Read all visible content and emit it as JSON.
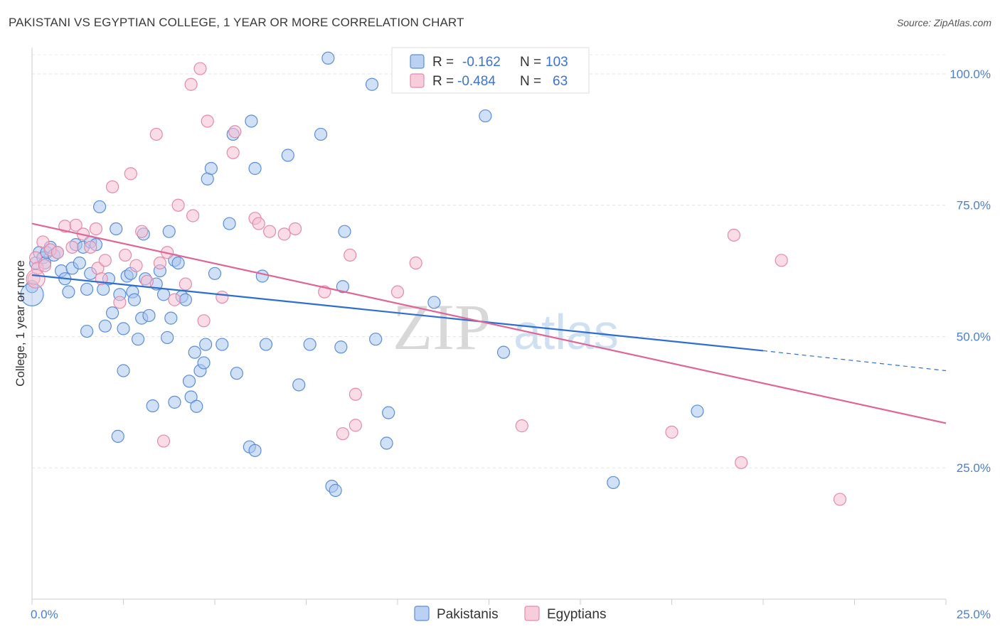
{
  "title": "PAKISTANI VS EGYPTIAN COLLEGE, 1 YEAR OR MORE CORRELATION CHART",
  "source": "Source: ZipAtlas.com",
  "colors": {
    "pakistani_fill": "#a9c6f0",
    "pakistani_stroke": "#5b8ed8",
    "pakistani_line": "#2d6fcf",
    "egyptian_fill": "#f6c0d2",
    "egyptian_stroke": "#e58aa9",
    "egyptian_line": "#e06594",
    "tick_blue": "#4a7fd0"
  },
  "legend": {
    "rows": [
      {
        "r_label": "R = ",
        "r_value": "-0.162",
        "n_label": "N = ",
        "n_value": "103"
      },
      {
        "r_label": "R = ",
        "r_value": "-0.484",
        "n_label": "N = ",
        "n_value": "63"
      }
    ]
  },
  "watermark": {
    "zip": "ZIP",
    "atlas": "atlas"
  },
  "chart_data": {
    "type": "scatter",
    "xlabel": "",
    "ylabel": "College, 1 year or more",
    "xlim": [
      0,
      25
    ],
    "ylim": [
      0,
      105
    ],
    "x_ticks": [
      {
        "value": 0,
        "label": "0.0%"
      },
      {
        "value": 25,
        "label": "25.0%"
      }
    ],
    "y_ticks": [
      {
        "value": 100,
        "label": "100.0%"
      },
      {
        "value": 75,
        "label": "75.0%"
      },
      {
        "value": 50,
        "label": "50.0%"
      },
      {
        "value": 25,
        "label": "25.0%"
      }
    ],
    "grid": true,
    "legend_placement": "top-center",
    "series": [
      {
        "name": "Pakistanis",
        "trend": {
          "x_start": 0,
          "y_start": 61.7,
          "x_solid_end": 20,
          "y_solid_end": 47.3,
          "x_end": 25,
          "y_end": 43.5
        },
        "points": [
          [
            0.0,
            59.5
          ],
          [
            0.1,
            64
          ],
          [
            0.2,
            66
          ],
          [
            0.3,
            65
          ],
          [
            0.35,
            64
          ],
          [
            0.4,
            66
          ],
          [
            0.5,
            67
          ],
          [
            0.6,
            65.5
          ],
          [
            0.7,
            66
          ],
          [
            0.8,
            62.5
          ],
          [
            0.9,
            61
          ],
          [
            1.0,
            58.5
          ],
          [
            1.1,
            63
          ],
          [
            1.2,
            67.5
          ],
          [
            1.3,
            64
          ],
          [
            1.4,
            67
          ],
          [
            1.5,
            59
          ],
          [
            1.6,
            68
          ],
          [
            1.85,
            74.7
          ],
          [
            1.6,
            62
          ],
          [
            1.75,
            67.5
          ],
          [
            1.5,
            51
          ],
          [
            1.95,
            59
          ],
          [
            2.0,
            52
          ],
          [
            2.1,
            61
          ],
          [
            2.2,
            54.5
          ],
          [
            2.3,
            70.5
          ],
          [
            2.4,
            58
          ],
          [
            2.5,
            51.5
          ],
          [
            2.5,
            43.5
          ],
          [
            2.6,
            61.5
          ],
          [
            2.7,
            62
          ],
          [
            2.75,
            58.5
          ],
          [
            2.8,
            57
          ],
          [
            2.9,
            49.5
          ],
          [
            3.0,
            53.5
          ],
          [
            3.1,
            61
          ],
          [
            3.2,
            54
          ],
          [
            3.3,
            36.8
          ],
          [
            3.4,
            60
          ],
          [
            3.5,
            62.5
          ],
          [
            3.6,
            58
          ],
          [
            3.7,
            49.8
          ],
          [
            3.75,
            70
          ],
          [
            3.8,
            53.5
          ],
          [
            3.9,
            64.5
          ],
          [
            4.0,
            64
          ],
          [
            4.1,
            57.6
          ],
          [
            2.35,
            31
          ],
          [
            3.05,
            69.5
          ],
          [
            3.9,
            37.5
          ],
          [
            4.2,
            57
          ],
          [
            4.3,
            41.5
          ],
          [
            4.35,
            38.5
          ],
          [
            4.45,
            47
          ],
          [
            4.5,
            36.7
          ],
          [
            4.6,
            43.5
          ],
          [
            4.7,
            45
          ],
          [
            4.75,
            48.5
          ],
          [
            4.8,
            80
          ],
          [
            4.9,
            82
          ],
          [
            5.0,
            62
          ],
          [
            5.2,
            48.5
          ],
          [
            5.4,
            71.5
          ],
          [
            5.5,
            88.5
          ],
          [
            5.6,
            43
          ],
          [
            6.0,
            91
          ],
          [
            6.1,
            82
          ],
          [
            5.95,
            29
          ],
          [
            6.1,
            28.3
          ],
          [
            6.3,
            61.5
          ],
          [
            6.4,
            48.5
          ],
          [
            7.0,
            84.5
          ],
          [
            7.3,
            40.8
          ],
          [
            7.6,
            48.5
          ],
          [
            7.9,
            88.5
          ],
          [
            8.1,
            103
          ],
          [
            8.2,
            21.5
          ],
          [
            8.3,
            20.7
          ],
          [
            8.45,
            48
          ],
          [
            8.5,
            59.5
          ],
          [
            8.55,
            70
          ],
          [
            9.3,
            98
          ],
          [
            9.4,
            49.5
          ],
          [
            9.75,
            35.5
          ],
          [
            9.7,
            29.7
          ],
          [
            11.0,
            56.5
          ],
          [
            12.4,
            92
          ],
          [
            12.9,
            47
          ],
          [
            15.9,
            22.2
          ],
          [
            18.2,
            35.8
          ]
        ]
      },
      {
        "name": "Egyptians",
        "trend": {
          "x_start": 0,
          "y_start": 71.5,
          "x_end": 25,
          "y_end": 33.5
        },
        "points": [
          [
            0.05,
            61
          ],
          [
            0.1,
            65
          ],
          [
            0.15,
            63
          ],
          [
            0.3,
            68
          ],
          [
            0.35,
            63.5
          ],
          [
            0.5,
            66.5
          ],
          [
            0.7,
            66
          ],
          [
            0.9,
            71
          ],
          [
            1.1,
            67
          ],
          [
            1.2,
            71.2
          ],
          [
            1.4,
            69.5
          ],
          [
            1.6,
            67
          ],
          [
            1.75,
            70.5
          ],
          [
            1.8,
            63
          ],
          [
            1.9,
            61
          ],
          [
            2.0,
            64.5
          ],
          [
            2.2,
            78.5
          ],
          [
            2.4,
            56.5
          ],
          [
            2.55,
            65.5
          ],
          [
            2.7,
            81
          ],
          [
            2.85,
            63.5
          ],
          [
            3.0,
            70
          ],
          [
            3.15,
            60.5
          ],
          [
            3.4,
            88.5
          ],
          [
            3.5,
            64
          ],
          [
            3.6,
            30.1
          ],
          [
            3.7,
            66
          ],
          [
            3.9,
            57
          ],
          [
            4.0,
            75
          ],
          [
            4.2,
            60
          ],
          [
            4.35,
            98
          ],
          [
            4.4,
            73
          ],
          [
            4.6,
            101
          ],
          [
            4.7,
            53
          ],
          [
            4.8,
            91
          ],
          [
            5.2,
            57.5
          ],
          [
            5.5,
            85
          ],
          [
            5.55,
            89
          ],
          [
            6.1,
            72.5
          ],
          [
            6.2,
            71.5
          ],
          [
            6.5,
            70
          ],
          [
            6.9,
            69.5
          ],
          [
            7.2,
            70.5
          ],
          [
            8.0,
            58.5
          ],
          [
            8.5,
            31.5
          ],
          [
            8.7,
            65.5
          ],
          [
            8.85,
            39
          ],
          [
            8.85,
            33.1
          ],
          [
            10.0,
            58.5
          ],
          [
            10.5,
            64
          ],
          [
            13.4,
            33
          ],
          [
            17.5,
            31.8
          ],
          [
            19.2,
            69.3
          ],
          [
            19.4,
            26
          ],
          [
            20.5,
            64.5
          ],
          [
            22.1,
            19
          ]
        ]
      }
    ]
  }
}
